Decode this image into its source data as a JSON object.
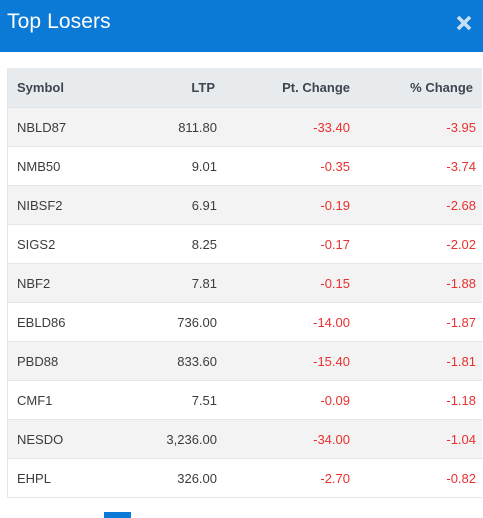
{
  "header": {
    "title": "Top Losers",
    "close_icon": "close-icon",
    "background": "#0a7ad6"
  },
  "table": {
    "columns": [
      "Symbol",
      "LTP",
      "Pt. Change",
      "% Change"
    ],
    "rows": [
      {
        "symbol": "NBLD87",
        "ltp": "811.80",
        "pt_change": "-33.40",
        "pct_change": "-3.95"
      },
      {
        "symbol": "NMB50",
        "ltp": "9.01",
        "pt_change": "-0.35",
        "pct_change": "-3.74"
      },
      {
        "symbol": "NIBSF2",
        "ltp": "6.91",
        "pt_change": "-0.19",
        "pct_change": "-2.68"
      },
      {
        "symbol": "SIGS2",
        "ltp": "8.25",
        "pt_change": "-0.17",
        "pct_change": "-2.02"
      },
      {
        "symbol": "NBF2",
        "ltp": "7.81",
        "pt_change": "-0.15",
        "pct_change": "-1.88"
      },
      {
        "symbol": "EBLD86",
        "ltp": "736.00",
        "pt_change": "-14.00",
        "pct_change": "-1.87"
      },
      {
        "symbol": "PBD88",
        "ltp": "833.60",
        "pt_change": "-15.40",
        "pct_change": "-1.81"
      },
      {
        "symbol": "CMF1",
        "ltp": "7.51",
        "pt_change": "-0.09",
        "pct_change": "-1.18"
      },
      {
        "symbol": "NESDO",
        "ltp": "3,236.00",
        "pt_change": "-34.00",
        "pct_change": "-1.04"
      },
      {
        "symbol": "EHPL",
        "ltp": "326.00",
        "pt_change": "-2.70",
        "pct_change": "-0.82"
      }
    ]
  },
  "colors": {
    "negative": "#e8312f",
    "header_row": "#e8ebee",
    "striped_row": "#f3f3f3"
  }
}
